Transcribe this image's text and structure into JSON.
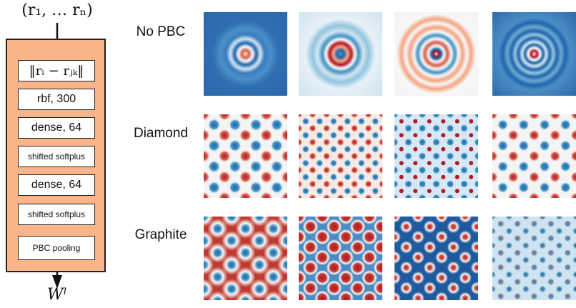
{
  "diagram": {
    "input_label": "(r₁, … rₙ)",
    "output_label": "Wˡ",
    "layers": [
      {
        "label": "‖rᵢ − rⱼₖ‖",
        "kind": "dist"
      },
      {
        "label": "rbf, 300",
        "kind": "big"
      },
      {
        "label": "dense, 64",
        "kind": "big"
      },
      {
        "label": "shifted softplus",
        "kind": "small"
      },
      {
        "label": "dense, 64",
        "kind": "big"
      },
      {
        "label": "shifted softplus",
        "kind": "small"
      },
      {
        "label": "PBC pooling",
        "kind": "small"
      }
    ]
  },
  "filters": {
    "rows": [
      {
        "label": "No PBC",
        "pattern": "radial",
        "panels": 4
      },
      {
        "label": "Diamond",
        "pattern": "square-lattice",
        "panels": 4
      },
      {
        "label": "Graphite",
        "pattern": "hexagonal-lattice",
        "panels": 4
      }
    ],
    "colors": {
      "positive": "#b2182b",
      "neutral": "#f7f7f7",
      "negative": "#2166ac"
    }
  }
}
